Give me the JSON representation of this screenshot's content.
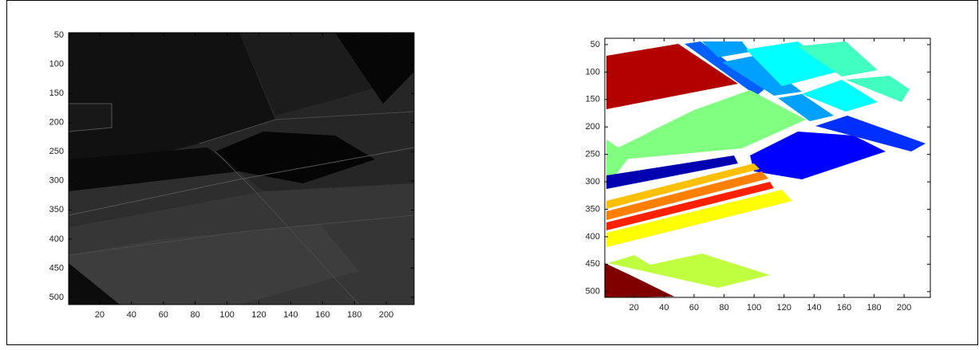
{
  "chart_data": [
    {
      "type": "image",
      "xlim": [
        0.5,
        217.5
      ],
      "ylim": [
        45.5,
        512.5
      ],
      "xticks": [
        20,
        40,
        60,
        80,
        100,
        120,
        140,
        160,
        180,
        200
      ],
      "yticks": [
        50,
        100,
        150,
        200,
        250,
        300,
        350,
        400,
        450,
        500
      ]
    },
    {
      "type": "image",
      "xlim": [
        0.5,
        217.5
      ],
      "ylim": [
        38.5,
        510.5
      ],
      "xticks": [
        20,
        40,
        60,
        80,
        100,
        120,
        140,
        160,
        180,
        200
      ],
      "yticks": [
        50,
        100,
        150,
        200,
        250,
        300,
        350,
        400,
        450,
        500
      ]
    }
  ]
}
